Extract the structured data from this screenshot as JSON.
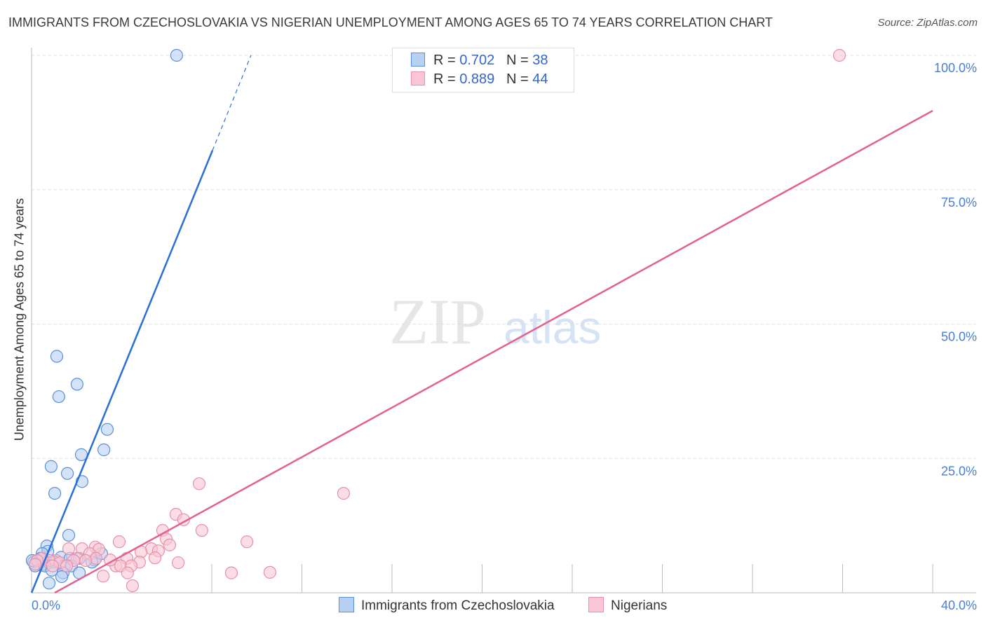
{
  "chart_data": {
    "type": "scatter",
    "title": "IMMIGRANTS FROM CZECHOSLOVAKIA VS NIGERIAN UNEMPLOYMENT AMONG AGES 65 TO 74 YEARS CORRELATION CHART",
    "source": "Source: ZipAtlas.com",
    "xlabel": "",
    "ylabel": "Unemployment Among Ages 65 to 74 years",
    "xlim": [
      0,
      40
    ],
    "ylim": [
      0,
      100
    ],
    "x_tick_labels": [
      "0.0%",
      "40.0%"
    ],
    "y_ticks": [
      25,
      50,
      75,
      100
    ],
    "y_tick_labels": [
      "25.0%",
      "50.0%",
      "75.0%",
      "100.0%"
    ],
    "grid": true,
    "legend_position": "top-center",
    "watermark": "ZIPatlas",
    "series": [
      {
        "name": "Immigrants from Czechoslovakia",
        "color": "#5b8fd9",
        "fill": "#b8d0f2",
        "line_color": "#2a6fd6",
        "R": "0.702",
        "N": "38",
        "trend": {
          "x0": 0,
          "y0": 0,
          "x1": 8.03,
          "y1": 82.3,
          "dash_x1": 9.74,
          "dash_y1": 100
        },
        "points": [
          [
            6.44,
            100
          ],
          [
            1.12,
            44.0
          ],
          [
            2.02,
            38.8
          ],
          [
            1.21,
            36.5
          ],
          [
            3.36,
            30.4
          ],
          [
            3.21,
            26.6
          ],
          [
            2.21,
            25.7
          ],
          [
            0.87,
            23.5
          ],
          [
            1.59,
            22.2
          ],
          [
            2.24,
            20.7
          ],
          [
            1.03,
            18.5
          ],
          [
            1.65,
            10.7
          ],
          [
            0.68,
            8.7
          ],
          [
            0.72,
            7.7
          ],
          [
            0.47,
            7.3
          ],
          [
            1.31,
            6.6
          ],
          [
            1.71,
            6.4
          ],
          [
            2.12,
            6.4
          ],
          [
            2.8,
            6.1
          ],
          [
            2.68,
            5.7
          ],
          [
            0.25,
            6.0
          ],
          [
            0.09,
            5.7
          ],
          [
            0.31,
            5.3
          ],
          [
            0.53,
            5.3
          ],
          [
            0.78,
            5.6
          ],
          [
            1.03,
            5.7
          ],
          [
            0.16,
            5.0
          ],
          [
            0.59,
            5.0
          ],
          [
            1.46,
            5.0
          ],
          [
            1.77,
            5.0
          ],
          [
            0.9,
            4.2
          ],
          [
            1.4,
            3.7
          ],
          [
            2.12,
            3.7
          ],
          [
            0.78,
            1.8
          ],
          [
            1.34,
            3.0
          ],
          [
            0.4,
            6.4
          ],
          [
            0.03,
            6.0
          ],
          [
            3.11,
            7.3
          ]
        ]
      },
      {
        "name": "Nigerians",
        "color": "#e890aa",
        "fill": "#f8c6d5",
        "line_color": "#e2638f",
        "R": "0.889",
        "N": "44",
        "trend": {
          "x0": 1.03,
          "y0": 0,
          "x1": 40,
          "y1": 89.7
        },
        "points": [
          [
            35.86,
            100
          ],
          [
            13.85,
            18.5
          ],
          [
            7.44,
            20.3
          ],
          [
            6.41,
            14.6
          ],
          [
            6.75,
            13.6
          ],
          [
            5.82,
            11.6
          ],
          [
            7.56,
            11.6
          ],
          [
            5.98,
            10.0
          ],
          [
            6.13,
            8.9
          ],
          [
            9.56,
            9.5
          ],
          [
            3.89,
            9.5
          ],
          [
            5.32,
            8.2
          ],
          [
            4.86,
            7.6
          ],
          [
            5.63,
            7.8
          ],
          [
            5.48,
            6.5
          ],
          [
            6.51,
            5.6
          ],
          [
            4.79,
            5.7
          ],
          [
            4.23,
            6.4
          ],
          [
            3.74,
            5.0
          ],
          [
            3.95,
            5.0
          ],
          [
            4.42,
            5.0
          ],
          [
            3.18,
            3.1
          ],
          [
            4.26,
            3.7
          ],
          [
            4.48,
            1.3
          ],
          [
            8.87,
            3.7
          ],
          [
            10.58,
            3.8
          ],
          [
            1.65,
            8.2
          ],
          [
            2.24,
            8.2
          ],
          [
            2.83,
            8.5
          ],
          [
            2.99,
            8.1
          ],
          [
            2.58,
            7.3
          ],
          [
            2.02,
            6.4
          ],
          [
            1.87,
            6.0
          ],
          [
            3.49,
            6.1
          ],
          [
            2.86,
            6.4
          ],
          [
            1.09,
            6.0
          ],
          [
            0.78,
            6.0
          ],
          [
            0.47,
            6.4
          ],
          [
            0.25,
            6.0
          ],
          [
            0.16,
            5.3
          ],
          [
            1.25,
            5.6
          ],
          [
            1.56,
            5.0
          ],
          [
            2.4,
            6.0
          ],
          [
            0.93,
            5.0
          ]
        ]
      }
    ]
  },
  "legend": {
    "r_label": "R =",
    "n_label": "N ="
  }
}
